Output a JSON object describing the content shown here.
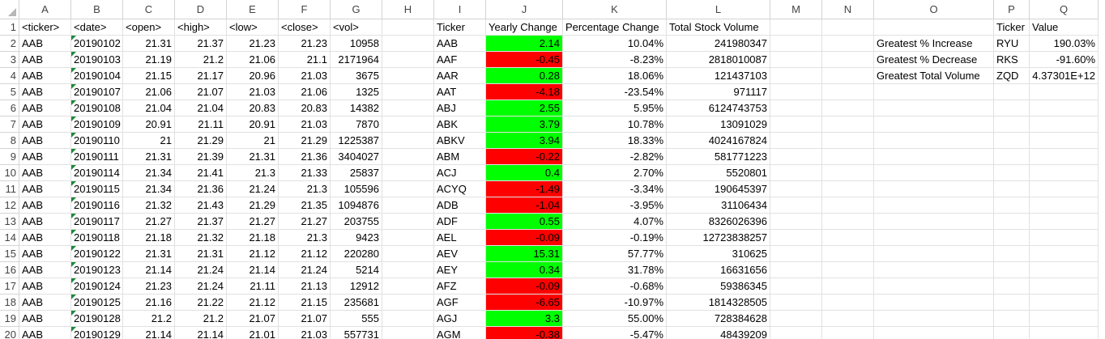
{
  "columns": [
    "A",
    "B",
    "C",
    "D",
    "E",
    "F",
    "G",
    "H",
    "I",
    "J",
    "K",
    "L",
    "M",
    "N",
    "O",
    "P",
    "Q"
  ],
  "rows": [
    {
      "num": "1",
      "cells": [
        "<ticker>",
        "<date>",
        "<open>",
        "<high>",
        "<low>",
        "<close>",
        "<vol>",
        "",
        "Ticker",
        "Yearly Change",
        "Percentage Change",
        "Total Stock Volume",
        "",
        "",
        "",
        "Ticker",
        "Value"
      ]
    },
    {
      "num": "2",
      "cells": [
        "AAB",
        "20190102",
        "21.31",
        "21.37",
        "21.23",
        "21.23",
        "10958",
        "",
        "AAB",
        "2.14",
        "10.04%",
        "241980347",
        "",
        "",
        "Greatest % Increase",
        "RYU",
        "190.03%"
      ]
    },
    {
      "num": "3",
      "cells": [
        "AAB",
        "20190103",
        "21.19",
        "21.2",
        "21.06",
        "21.1",
        "2171964",
        "",
        "AAF",
        "-0.45",
        "-8.23%",
        "2818010087",
        "",
        "",
        "Greatest % Decrease",
        "RKS",
        "-91.60%"
      ]
    },
    {
      "num": "4",
      "cells": [
        "AAB",
        "20190104",
        "21.15",
        "21.17",
        "20.96",
        "21.03",
        "3675",
        "",
        "AAR",
        "0.28",
        "18.06%",
        "121437103",
        "",
        "",
        "Greatest Total Volume",
        "ZQD",
        "4.37301E+12"
      ]
    },
    {
      "num": "5",
      "cells": [
        "AAB",
        "20190107",
        "21.06",
        "21.07",
        "21.03",
        "21.06",
        "1325",
        "",
        "AAT",
        "-4.18",
        "-23.54%",
        "971117",
        "",
        "",
        "",
        "",
        ""
      ]
    },
    {
      "num": "6",
      "cells": [
        "AAB",
        "20190108",
        "21.04",
        "21.04",
        "20.83",
        "20.83",
        "14382",
        "",
        "ABJ",
        "2.55",
        "5.95%",
        "6124743753",
        "",
        "",
        "",
        "",
        ""
      ]
    },
    {
      "num": "7",
      "cells": [
        "AAB",
        "20190109",
        "20.91",
        "21.11",
        "20.91",
        "21.03",
        "7870",
        "",
        "ABK",
        "3.79",
        "10.78%",
        "13091029",
        "",
        "",
        "",
        "",
        ""
      ]
    },
    {
      "num": "8",
      "cells": [
        "AAB",
        "20190110",
        "21",
        "21.29",
        "21",
        "21.29",
        "1225387",
        "",
        "ABKV",
        "3.94",
        "18.33%",
        "4024167824",
        "",
        "",
        "",
        "",
        ""
      ]
    },
    {
      "num": "9",
      "cells": [
        "AAB",
        "20190111",
        "21.31",
        "21.39",
        "21.31",
        "21.36",
        "3404027",
        "",
        "ABM",
        "-0.22",
        "-2.82%",
        "581771223",
        "",
        "",
        "",
        "",
        ""
      ]
    },
    {
      "num": "10",
      "cells": [
        "AAB",
        "20190114",
        "21.34",
        "21.41",
        "21.3",
        "21.33",
        "25837",
        "",
        "ACJ",
        "0.4",
        "2.70%",
        "5520801",
        "",
        "",
        "",
        "",
        ""
      ]
    },
    {
      "num": "11",
      "cells": [
        "AAB",
        "20190115",
        "21.34",
        "21.36",
        "21.24",
        "21.3",
        "105596",
        "",
        "ACYQ",
        "-1.49",
        "-3.34%",
        "190645397",
        "",
        "",
        "",
        "",
        ""
      ]
    },
    {
      "num": "12",
      "cells": [
        "AAB",
        "20190116",
        "21.32",
        "21.43",
        "21.29",
        "21.35",
        "1094876",
        "",
        "ADB",
        "-1.04",
        "-3.95%",
        "31106434",
        "",
        "",
        "",
        "",
        ""
      ]
    },
    {
      "num": "13",
      "cells": [
        "AAB",
        "20190117",
        "21.27",
        "21.37",
        "21.27",
        "21.27",
        "203755",
        "",
        "ADF",
        "0.55",
        "4.07%",
        "8326026396",
        "",
        "",
        "",
        "",
        ""
      ]
    },
    {
      "num": "14",
      "cells": [
        "AAB",
        "20190118",
        "21.18",
        "21.32",
        "21.18",
        "21.3",
        "9423",
        "",
        "AEL",
        "-0.09",
        "-0.19%",
        "12723838257",
        "",
        "",
        "",
        "",
        ""
      ]
    },
    {
      "num": "15",
      "cells": [
        "AAB",
        "20190122",
        "21.31",
        "21.31",
        "21.12",
        "21.12",
        "220280",
        "",
        "AEV",
        "15.31",
        "57.77%",
        "310625",
        "",
        "",
        "",
        "",
        ""
      ]
    },
    {
      "num": "16",
      "cells": [
        "AAB",
        "20190123",
        "21.14",
        "21.24",
        "21.14",
        "21.24",
        "5214",
        "",
        "AEY",
        "0.34",
        "31.78%",
        "16631656",
        "",
        "",
        "",
        "",
        ""
      ]
    },
    {
      "num": "17",
      "cells": [
        "AAB",
        "20190124",
        "21.23",
        "21.24",
        "21.11",
        "21.13",
        "12912",
        "",
        "AFZ",
        "-0.09",
        "-0.68%",
        "59386345",
        "",
        "",
        "",
        "",
        ""
      ]
    },
    {
      "num": "18",
      "cells": [
        "AAB",
        "20190125",
        "21.16",
        "21.22",
        "21.12",
        "21.15",
        "235681",
        "",
        "AGF",
        "-6.65",
        "-10.97%",
        "1814328505",
        "",
        "",
        "",
        "",
        ""
      ]
    },
    {
      "num": "19",
      "cells": [
        "AAB",
        "20190128",
        "21.2",
        "21.2",
        "21.07",
        "21.07",
        "555",
        "",
        "AGJ",
        "3.3",
        "55.00%",
        "728384628",
        "",
        "",
        "",
        "",
        ""
      ]
    },
    {
      "num": "20",
      "cells": [
        "AAB",
        "20190129",
        "21.14",
        "21.14",
        "21.01",
        "21.03",
        "557731",
        "",
        "AGM",
        "-0.38",
        "-5.47%",
        "48439209",
        "",
        "",
        "",
        "",
        ""
      ]
    }
  ],
  "colors": {
    "positive": "#00ff00",
    "negative": "#ff0000"
  }
}
